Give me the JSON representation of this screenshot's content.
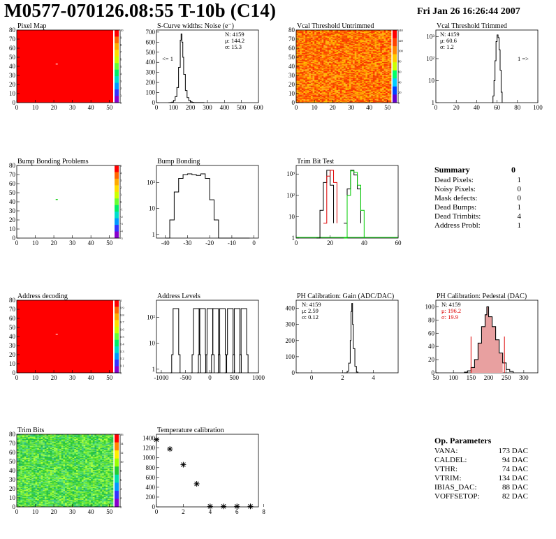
{
  "header": {
    "title": "M0577-070126.08:55 T-10b (C14)",
    "date": "Fri Jan 26 16:26:44 2007"
  },
  "colors": {
    "map_red": "#ff0000",
    "trim_mid": "#22cc33",
    "curve_red": "#dd0000",
    "curve_green": "#00cc00",
    "pedestal_fill": "#e8a0a0"
  },
  "chart_data": [
    {
      "id": "pixel_map",
      "type": "heatmap",
      "title": "Pixel Map",
      "x_ticks": [
        "0",
        "10",
        "20",
        "30",
        "40",
        "50"
      ],
      "y_ticks": [
        "0",
        "10",
        "20",
        "30",
        "40",
        "50",
        "60",
        "70",
        "80"
      ],
      "z_ticks": [
        "10",
        "9",
        "8",
        "7",
        "6",
        "5",
        "4",
        "3",
        "2",
        "1",
        "0"
      ],
      "fill": "uniform red, single lighter pixel at (21,43)"
    },
    {
      "id": "scurve_noise",
      "type": "line",
      "title": "S-Curve widths: Noise (e⁻)",
      "x_ticks": [
        "0",
        "100",
        "200",
        "300",
        "400",
        "500",
        "600"
      ],
      "y_ticks": [
        "0",
        "100",
        "200",
        "300",
        "400",
        "500",
        "600",
        "700"
      ],
      "stats": [
        "N: 4159",
        "μ: 144.2",
        "σ: 15.3"
      ],
      "annotation": "<= 1",
      "x": [
        70,
        80,
        90,
        100,
        110,
        120,
        130,
        140,
        145,
        150,
        155,
        160,
        170,
        180,
        190,
        200,
        210,
        220,
        240,
        260,
        280
      ],
      "values": [
        0,
        2,
        5,
        20,
        60,
        150,
        350,
        620,
        680,
        600,
        450,
        280,
        120,
        50,
        20,
        8,
        3,
        1,
        1,
        1,
        0
      ]
    },
    {
      "id": "vcal_untrimmed",
      "type": "heatmap",
      "title": "Vcal Threshold Untrimmed",
      "x_ticks": [
        "0",
        "10",
        "20",
        "30",
        "40",
        "50"
      ],
      "y_ticks": [
        "0",
        "10",
        "20",
        "30",
        "40",
        "50",
        "60",
        "70",
        "80"
      ],
      "z_ticks": [
        "140",
        "120",
        "100",
        "80",
        "60",
        "40",
        "20",
        "0"
      ]
    },
    {
      "id": "vcal_trimmed",
      "type": "line",
      "title": "Vcal Threshold Trimmed",
      "x_ticks": [
        "0",
        "20",
        "40",
        "60",
        "80",
        "100"
      ],
      "y_ticks": [
        "1",
        "10",
        "10²",
        "10³"
      ],
      "stats": [
        "N: 4159",
        "μ: 60.6",
        "σ: 1.2"
      ],
      "annotation": "1 =>",
      "x": [
        55,
        56,
        57,
        58,
        59,
        60,
        61,
        62,
        63,
        64,
        65
      ],
      "values": [
        0,
        2,
        10,
        80,
        600,
        1200,
        900,
        250,
        30,
        3,
        0
      ]
    },
    {
      "id": "bump_problems",
      "type": "heatmap",
      "title": "Bump Bonding Problems",
      "x_ticks": [
        "0",
        "10",
        "20",
        "30",
        "40",
        "50"
      ],
      "y_ticks": [
        "0",
        "10",
        "20",
        "30",
        "40",
        "50",
        "60",
        "70",
        "80"
      ],
      "z_ticks": [
        "5",
        "4",
        "3",
        "2",
        "1",
        "0",
        "-1",
        "-2",
        "-3",
        "-4",
        "-5"
      ],
      "fill": "white, single green pixel at (21,43)"
    },
    {
      "id": "bump_bonding",
      "type": "line",
      "title": "Bump Bonding",
      "x_ticks": [
        "-40",
        "-30",
        "-20",
        "-10",
        "0"
      ],
      "y_ticks": [
        "1",
        "10",
        "10²"
      ],
      "x": [
        -38,
        -36,
        -34,
        -32,
        -30,
        -28,
        -26,
        -24,
        -22,
        -20,
        -18,
        -16,
        -14,
        -12,
        -10,
        -5,
        0
      ],
      "values": [
        1,
        5,
        60,
        200,
        280,
        300,
        280,
        260,
        300,
        200,
        30,
        5,
        1,
        1,
        1,
        1,
        1
      ]
    },
    {
      "id": "trim_bit_test",
      "type": "line",
      "title": "Trim Bit Test",
      "x_ticks": [
        "0",
        "20",
        "40",
        "60"
      ],
      "y_ticks": [
        "1",
        "10",
        "10²",
        "10³"
      ],
      "series": [
        {
          "color": "#000000",
          "x": [
            12,
            14,
            16,
            18,
            20,
            22
          ],
          "values": [
            1,
            20,
            400,
            1500,
            300,
            5
          ]
        },
        {
          "color": "#dd0000",
          "x": [
            16,
            18,
            20,
            22,
            24
          ],
          "values": [
            5,
            800,
            1500,
            400,
            5
          ]
        },
        {
          "color": "#000000",
          "x": [
            28,
            30,
            32,
            34,
            36,
            38
          ],
          "values": [
            5,
            200,
            1500,
            900,
            200,
            5
          ]
        },
        {
          "color": "#00cc00",
          "x": [
            28,
            30,
            32,
            34,
            36,
            38,
            40
          ],
          "values": [
            1,
            100,
            1400,
            1200,
            300,
            20,
            1
          ]
        }
      ]
    },
    {
      "id": "address_decoding",
      "type": "heatmap",
      "title": "Address decoding",
      "x_ticks": [
        "0",
        "10",
        "20",
        "30",
        "40",
        "50"
      ],
      "y_ticks": [
        "0",
        "10",
        "20",
        "30",
        "40",
        "50",
        "60",
        "70",
        "80"
      ],
      "z_ticks": [
        "1",
        "0.9",
        "0.8",
        "0.7",
        "0.6",
        "0.5",
        "0.4",
        "0.3",
        "0.2",
        "0.1",
        "0"
      ]
    },
    {
      "id": "address_levels",
      "type": "line",
      "title": "Address Levels",
      "x_ticks": [
        "-1000",
        "-500",
        "0",
        "500",
        "1000"
      ],
      "y_ticks": [
        "1",
        "10",
        "10²"
      ],
      "peaks": [
        -700,
        -280,
        -150,
        0,
        120,
        260,
        420,
        560,
        700
      ],
      "peak_height": 300
    },
    {
      "id": "ph_gain",
      "type": "line",
      "title": "PH Calibration: Gain (ADC/DAC)",
      "x_ticks": [
        "0",
        "2",
        "4"
      ],
      "y_ticks": [
        "0",
        "100",
        "200",
        "300",
        "400"
      ],
      "stats": [
        "N: 4159",
        "μ: 2.59",
        "σ: 0.12"
      ],
      "x": [
        2.1,
        2.3,
        2.4,
        2.5,
        2.55,
        2.6,
        2.65,
        2.7,
        2.8,
        2.9,
        3.0
      ],
      "values": [
        0,
        10,
        60,
        200,
        380,
        430,
        300,
        150,
        40,
        5,
        0
      ]
    },
    {
      "id": "ph_pedestal",
      "type": "area",
      "title": "PH Calibration: Pedestal (DAC)",
      "x_ticks": [
        "50",
        "100",
        "150",
        "200",
        "250",
        "300"
      ],
      "y_ticks": [
        "0",
        "20",
        "40",
        "60",
        "80",
        "100"
      ],
      "stats": [
        "N: 4159",
        "μ: 196.2",
        "σ: 19.9"
      ],
      "cut_lines": [
        150,
        245
      ],
      "x": [
        130,
        140,
        150,
        160,
        170,
        180,
        190,
        195,
        200,
        210,
        220,
        230,
        240,
        250,
        260,
        270
      ],
      "values": [
        1,
        3,
        8,
        20,
        45,
        70,
        88,
        100,
        85,
        70,
        50,
        30,
        15,
        5,
        2,
        0
      ]
    },
    {
      "id": "trim_bits",
      "type": "heatmap",
      "title": "Trim Bits",
      "x_ticks": [
        "0",
        "10",
        "20",
        "30",
        "40",
        "50"
      ],
      "y_ticks": [
        "0",
        "10",
        "20",
        "30",
        "40",
        "50",
        "60",
        "70",
        "80"
      ],
      "z_ticks": [
        "16",
        "14",
        "12",
        "10",
        "8",
        "6",
        "4",
        "2",
        "0"
      ]
    },
    {
      "id": "temperature_calibration",
      "type": "scatter",
      "title": "Temperature calibration",
      "x_ticks": [
        "0",
        "2",
        "4",
        "6",
        "8"
      ],
      "y_ticks": [
        "0",
        "200",
        "400",
        "600",
        "800",
        "1000",
        "1200",
        "1400"
      ],
      "x": [
        0,
        1,
        2,
        3,
        4,
        5,
        6,
        7
      ],
      "values": [
        1370,
        1180,
        860,
        470,
        10,
        10,
        10,
        10
      ]
    }
  ],
  "summary": {
    "title": "Summary",
    "total": "0",
    "rows": [
      {
        "label": "Dead Pixels:",
        "value": "1"
      },
      {
        "label": "Noisy Pixels:",
        "value": "0"
      },
      {
        "label": "Mask defects:",
        "value": "0"
      },
      {
        "label": "Dead Bumps:",
        "value": "1"
      },
      {
        "label": "Dead Trimbits:",
        "value": "4"
      },
      {
        "label": "Address Probl:",
        "value": "1"
      }
    ]
  },
  "op_params": {
    "title": "Op. Parameters",
    "rows": [
      {
        "label": "VANA:",
        "value": "173 DAC"
      },
      {
        "label": "CALDEL:",
        "value": "94 DAC"
      },
      {
        "label": "VTHR:",
        "value": "74 DAC"
      },
      {
        "label": "VTRIM:",
        "value": "134 DAC"
      },
      {
        "label": "IBIAS_DAC:",
        "value": "88 DAC"
      },
      {
        "label": "VOFFSETOP:",
        "value": "82 DAC"
      }
    ]
  }
}
